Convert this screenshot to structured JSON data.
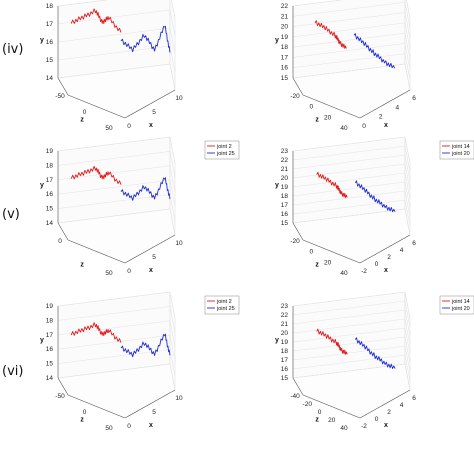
{
  "rows": [
    {
      "label": "(iv)"
    },
    {
      "label": "(v)"
    },
    {
      "label": "(vi)"
    }
  ],
  "chart_data": [
    {
      "type": "line3d",
      "row": 0,
      "col": 0,
      "xlabel": "x",
      "ylabel": "y",
      "zlabel": "z",
      "xlim": [
        0,
        10
      ],
      "ylim": [
        14,
        18
      ],
      "zlim": [
        -50,
        50
      ],
      "xticks": [
        "0",
        "5",
        "10"
      ],
      "yticks": [
        "14",
        "15",
        "16",
        "17",
        "18"
      ],
      "zticks": [
        "-50",
        "0",
        "50"
      ],
      "legend": [],
      "series": [
        {
          "color": "#e31a1c",
          "x": [
            1,
            2,
            3,
            3.5,
            4,
            5
          ],
          "y": [
            17.2,
            17.5,
            17.9,
            17.3,
            17.6,
            16.8
          ],
          "z": [
            -30,
            -20,
            -10,
            0,
            10,
            20
          ]
        },
        {
          "color": "#1f2bd6",
          "x": [
            5,
            6,
            7,
            8,
            9,
            9.5
          ],
          "y": [
            16.4,
            15.8,
            16.6,
            15.6,
            16.8,
            15.2
          ],
          "z": [
            20,
            25,
            30,
            20,
            10,
            5
          ]
        }
      ]
    },
    {
      "type": "line3d",
      "row": 0,
      "col": 1,
      "xlabel": "x",
      "ylabel": "y",
      "zlabel": "z",
      "xlim": [
        0,
        6
      ],
      "ylim": [
        15,
        22
      ],
      "zlim": [
        -20,
        40
      ],
      "xticks": [
        "0",
        "2",
        "4",
        "6"
      ],
      "yticks": [
        "15",
        "16",
        "17",
        "18",
        "19",
        "20",
        "21",
        "22"
      ],
      "zticks": [
        "-20",
        "0",
        "20",
        "40"
      ],
      "legend": [],
      "series": [
        {
          "color": "#e31a1c",
          "x": [
            1,
            1.5,
            2,
            2.2,
            2.5
          ],
          "y": [
            20.8,
            20.2,
            19.5,
            18.9,
            18.4
          ],
          "z": [
            0,
            5,
            10,
            15,
            20
          ]
        },
        {
          "color": "#1f2bd6",
          "x": [
            3,
            3.5,
            4,
            4.5,
            5
          ],
          "y": [
            19.4,
            18.5,
            17.6,
            16.8,
            16.2
          ],
          "z": [
            10,
            15,
            20,
            25,
            30
          ]
        }
      ]
    },
    {
      "type": "line3d",
      "row": 1,
      "col": 0,
      "xlabel": "x",
      "ylabel": "y",
      "zlabel": "z",
      "xlim": [
        0,
        10
      ],
      "ylim": [
        14,
        19
      ],
      "zlim": [
        -50,
        50
      ],
      "xticks": [
        "0",
        "5",
        "10"
      ],
      "yticks": [
        "14",
        "15",
        "16",
        "17",
        "18",
        "19"
      ],
      "zticks": [
        "0",
        "50"
      ],
      "legend": [
        "joint 2",
        "joint 25"
      ],
      "series": [
        {
          "name": "joint 2",
          "color": "#e31a1c",
          "x": [
            1,
            2,
            3,
            3.5,
            4,
            5
          ],
          "y": [
            17.3,
            17.6,
            18.0,
            17.4,
            17.8,
            17.0
          ],
          "z": [
            -30,
            -20,
            -10,
            0,
            10,
            20
          ]
        },
        {
          "name": "joint 25",
          "color": "#1f2bd6",
          "x": [
            5,
            6,
            7,
            8,
            9,
            9.5
          ],
          "y": [
            16.6,
            16.0,
            16.8,
            15.8,
            17.0,
            15.4
          ],
          "z": [
            20,
            25,
            30,
            20,
            10,
            5
          ]
        }
      ]
    },
    {
      "type": "line3d",
      "row": 1,
      "col": 1,
      "xlabel": "x",
      "ylabel": "y",
      "zlabel": "z",
      "xlim": [
        0,
        6
      ],
      "ylim": [
        15,
        23
      ],
      "zlim": [
        -40,
        40
      ],
      "xticks": [
        "-2",
        "0",
        "2",
        "4",
        "6"
      ],
      "yticks": [
        "15",
        "16",
        "17",
        "18",
        "19",
        "20",
        "21",
        "22",
        "23"
      ],
      "zticks": [
        "-20",
        "0",
        "20",
        "40"
      ],
      "legend": [
        "joint 14",
        "joint 20"
      ],
      "series": [
        {
          "name": "joint 14",
          "color": "#e31a1c",
          "x": [
            1,
            1.5,
            2,
            2.2,
            2.5
          ],
          "y": [
            21.2,
            20.5,
            19.8,
            19.1,
            18.6
          ],
          "z": [
            0,
            5,
            10,
            15,
            20
          ]
        },
        {
          "name": "joint 20",
          "color": "#1f2bd6",
          "x": [
            3,
            3.5,
            4,
            4.5,
            5
          ],
          "y": [
            20.0,
            19.0,
            18.0,
            17.2,
            16.6
          ],
          "z": [
            10,
            15,
            20,
            25,
            30
          ]
        }
      ]
    },
    {
      "type": "line3d",
      "row": 2,
      "col": 0,
      "xlabel": "x",
      "ylabel": "y",
      "zlabel": "z",
      "xlim": [
        0,
        10
      ],
      "ylim": [
        14,
        19
      ],
      "zlim": [
        -50,
        50
      ],
      "xticks": [
        "0",
        "5",
        "10"
      ],
      "yticks": [
        "14",
        "15",
        "16",
        "17",
        "18",
        "19"
      ],
      "zticks": [
        "-50",
        "0",
        "50"
      ],
      "legend": [
        "joint 2",
        "joint 25"
      ],
      "series": [
        {
          "name": "joint 2",
          "color": "#e31a1c",
          "x": [
            1,
            2,
            3,
            3.5,
            4,
            5
          ],
          "y": [
            17.2,
            17.5,
            17.9,
            17.3,
            17.6,
            16.8
          ],
          "z": [
            -30,
            -20,
            -10,
            0,
            10,
            20
          ]
        },
        {
          "name": "joint 25",
          "color": "#1f2bd6",
          "x": [
            5,
            6,
            7,
            8,
            9,
            9.5
          ],
          "y": [
            16.5,
            15.9,
            16.7,
            15.7,
            16.9,
            15.3
          ],
          "z": [
            20,
            25,
            30,
            20,
            10,
            5
          ]
        }
      ]
    },
    {
      "type": "line3d",
      "row": 2,
      "col": 1,
      "xlabel": "x",
      "ylabel": "y",
      "zlabel": "z",
      "xlim": [
        0,
        6
      ],
      "ylim": [
        15,
        23
      ],
      "zlim": [
        -40,
        40
      ],
      "xticks": [
        "-2",
        "0",
        "2",
        "4",
        "6"
      ],
      "yticks": [
        "15",
        "16",
        "17",
        "18",
        "19",
        "20",
        "21",
        "22",
        "23"
      ],
      "zticks": [
        "-40",
        "-20",
        "0",
        "20",
        "40"
      ],
      "legend": [
        "joint 14",
        "joint 20"
      ],
      "series": [
        {
          "name": "joint 14",
          "color": "#e31a1c",
          "x": [
            1,
            1.5,
            2,
            2.2,
            2.5
          ],
          "y": [
            21.0,
            20.3,
            19.6,
            18.9,
            18.4
          ],
          "z": [
            0,
            5,
            10,
            15,
            20
          ]
        },
        {
          "name": "joint 20",
          "color": "#1f2bd6",
          "x": [
            3,
            3.5,
            4,
            4.5,
            5
          ],
          "y": [
            19.8,
            18.8,
            17.8,
            17.0,
            16.4
          ],
          "z": [
            10,
            15,
            20,
            25,
            30
          ]
        }
      ]
    }
  ]
}
